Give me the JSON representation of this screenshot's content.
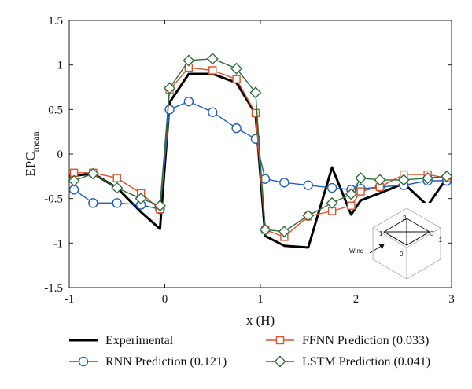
{
  "chart_data": {
    "type": "line",
    "xlabel": "x (H)",
    "ylabel_main": "EPC",
    "ylabel_sub": "mean",
    "xlim": [
      -1,
      3
    ],
    "ylim": [
      -1.5,
      1.5
    ],
    "xticks": [
      -1,
      0,
      1,
      2,
      3
    ],
    "yticks": [
      -1.5,
      -1,
      -0.5,
      0,
      0.5,
      1,
      1.5
    ],
    "grid": false,
    "legend_position": "bottom",
    "series": [
      {
        "name": "Experimental",
        "color": "#000000",
        "marker": "none",
        "x": [
          -1,
          -0.75,
          -0.5,
          -0.25,
          -0.05,
          0.05,
          0.25,
          0.5,
          0.75,
          0.95,
          1.05,
          1.25,
          1.5,
          1.75,
          1.95,
          2.05,
          2.25,
          2.5,
          2.75,
          2.95
        ],
        "y": [
          -0.25,
          -0.22,
          -0.38,
          -0.65,
          -0.84,
          0.58,
          0.9,
          0.9,
          0.8,
          0.45,
          -0.92,
          -1.03,
          -1.05,
          -0.15,
          -0.68,
          -0.52,
          -0.44,
          -0.33,
          -0.58,
          -0.27
        ]
      },
      {
        "name": "RNN Prediction (0.121)",
        "color": "#1f5fbf",
        "marker": "circle",
        "x": [
          -0.95,
          -0.75,
          -0.5,
          -0.25,
          -0.05,
          0.05,
          0.25,
          0.5,
          0.75,
          0.95,
          1.05,
          1.25,
          1.5,
          1.75,
          1.95,
          2.05,
          2.25,
          2.5,
          2.75,
          2.95
        ],
        "y": [
          -0.4,
          -0.55,
          -0.55,
          -0.57,
          -0.62,
          0.5,
          0.59,
          0.47,
          0.29,
          0.17,
          -0.28,
          -0.32,
          -0.35,
          -0.38,
          -0.4,
          -0.39,
          -0.37,
          -0.35,
          -0.3,
          -0.3
        ]
      },
      {
        "name": "FFNN Prediction (0.033)",
        "color": "#e0522a",
        "marker": "square",
        "x": [
          -0.95,
          -0.75,
          -0.5,
          -0.25,
          -0.05,
          0.05,
          0.25,
          0.5,
          0.75,
          0.95,
          1.05,
          1.25,
          1.5,
          1.75,
          1.95,
          2.05,
          2.25,
          2.5,
          2.75,
          2.95
        ],
        "y": [
          -0.21,
          -0.21,
          -0.27,
          -0.44,
          -0.62,
          0.72,
          0.97,
          0.94,
          0.84,
          0.46,
          -0.85,
          -0.93,
          -0.7,
          -0.64,
          -0.58,
          -0.42,
          -0.37,
          -0.23,
          -0.23,
          -0.27
        ]
      },
      {
        "name": "LSTM Prediction (0.041)",
        "color": "#2e6b3c",
        "marker": "diamond",
        "x": [
          -0.95,
          -0.75,
          -0.5,
          -0.25,
          -0.05,
          0.05,
          0.25,
          0.5,
          0.75,
          0.95,
          1.05,
          1.25,
          1.5,
          1.75,
          1.95,
          2.05,
          2.25,
          2.5,
          2.75,
          2.95
        ],
        "y": [
          -0.3,
          -0.22,
          -0.38,
          -0.5,
          -0.58,
          0.74,
          1.05,
          1.07,
          0.96,
          0.69,
          -0.85,
          -0.87,
          -0.69,
          -0.55,
          -0.45,
          -0.27,
          -0.29,
          -0.29,
          -0.27,
          -0.25
        ]
      }
    ],
    "inset": {
      "labels": [
        "1",
        "2",
        "3",
        "0",
        "-1"
      ],
      "wind_label": "Wind"
    }
  }
}
